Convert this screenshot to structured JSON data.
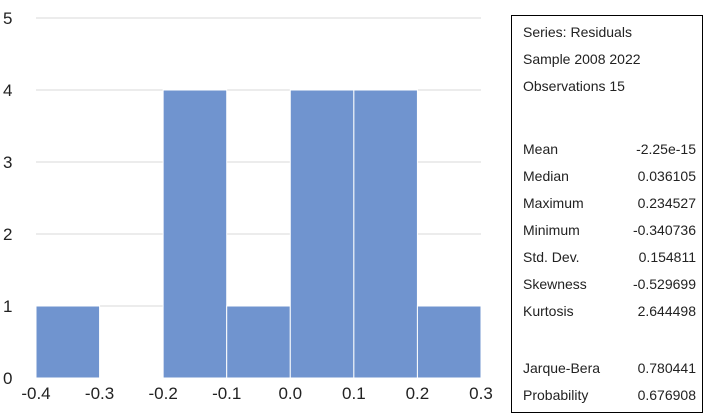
{
  "chart_data": {
    "type": "bar",
    "subtype": "histogram",
    "bin_edges": [
      -0.4,
      -0.3,
      -0.2,
      -0.1,
      0.0,
      0.1,
      0.2,
      0.3
    ],
    "counts": [
      1,
      0,
      4,
      1,
      4,
      4,
      1
    ],
    "xtick_labels": [
      "-0.4",
      "-0.3",
      "-0.2",
      "-0.1",
      "0.0",
      "0.1",
      "0.2",
      "0.3"
    ],
    "ytick_labels": [
      "0",
      "1",
      "2",
      "3",
      "4",
      "5"
    ],
    "xlim": [
      -0.4,
      0.3
    ],
    "ylim": [
      0,
      5
    ],
    "grid": true,
    "title": "",
    "xlabel": "",
    "ylabel": "",
    "bar_color": "#7094cf"
  },
  "stats": {
    "header": [
      "Series: Residuals",
      "Sample 2008 2022",
      "Observations 15"
    ],
    "rows": [
      {
        "label": "Mean",
        "value": "-2.25e-15"
      },
      {
        "label": "Median",
        "value": "0.036105"
      },
      {
        "label": "Maximum",
        "value": "0.234527"
      },
      {
        "label": "Minimum",
        "value": "-0.340736"
      },
      {
        "label": "Std. Dev.",
        "value": "0.154811"
      },
      {
        "label": "Skewness",
        "value": "-0.529699"
      },
      {
        "label": "Kurtosis",
        "value": "2.644498"
      }
    ],
    "tests": [
      {
        "label": "Jarque-Bera",
        "value": "0.780441"
      },
      {
        "label": "Probability",
        "value": "0.676908"
      }
    ]
  }
}
